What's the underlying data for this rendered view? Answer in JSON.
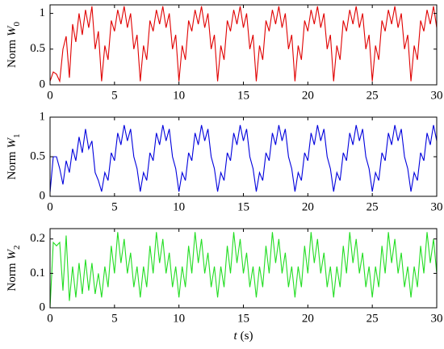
{
  "chart_data": [
    {
      "type": "line",
      "ylabel": "Norm",
      "ylabel_symbol": "W",
      "ylabel_sub": "0",
      "x": [
        0,
        0.25,
        0.5,
        0.75,
        1,
        1.25,
        1.5,
        1.75,
        2,
        2.25,
        2.5,
        2.75,
        3,
        3.25,
        3.5,
        3.75,
        4,
        4.25,
        4.5,
        4.75,
        5,
        5.25,
        5.5,
        5.75,
        6,
        6.25,
        6.5,
        6.75,
        7,
        7.25,
        7.5,
        7.75,
        8,
        8.25,
        8.5,
        8.75,
        9,
        9.25,
        9.5,
        9.75,
        10,
        10.25,
        10.5,
        10.75,
        11,
        11.25,
        11.5,
        11.75,
        12,
        12.25,
        12.5,
        12.75,
        13,
        13.25,
        13.5,
        13.75,
        14,
        14.25,
        14.5,
        14.75,
        15,
        15.25,
        15.5,
        15.75,
        16,
        16.25,
        16.5,
        16.75,
        17,
        17.25,
        17.5,
        17.75,
        18,
        18.25,
        18.5,
        18.75,
        19,
        19.25,
        19.5,
        19.75,
        20,
        20.25,
        20.5,
        20.75,
        21,
        21.25,
        21.5,
        21.75,
        22,
        22.25,
        22.5,
        22.75,
        23,
        23.25,
        23.5,
        23.75,
        24,
        24.25,
        24.5,
        24.75,
        25,
        25.25,
        25.5,
        25.75,
        26,
        26.25,
        26.5,
        26.75,
        27,
        27.25,
        27.5,
        27.75,
        28,
        28.25,
        28.5,
        28.75,
        29,
        29.25,
        29.5,
        29.75,
        30
      ],
      "series": [
        {
          "color": "#e00000",
          "values": [
            0.05,
            0.18,
            0.15,
            0.05,
            0.5,
            0.68,
            0.1,
            0.85,
            0.6,
            1.0,
            0.7,
            1.05,
            0.8,
            1.1,
            0.5,
            0.75,
            0.05,
            0.55,
            0.35,
            0.9,
            0.75,
            1.05,
            0.85,
            1.1,
            0.8,
            1.0,
            0.5,
            0.7,
            0.05,
            0.55,
            0.35,
            0.9,
            0.75,
            1.05,
            0.85,
            1.1,
            0.8,
            1.0,
            0.5,
            0.7,
            0.05,
            0.55,
            0.35,
            0.9,
            0.75,
            1.05,
            0.85,
            1.1,
            0.8,
            1.0,
            0.5,
            0.7,
            0.05,
            0.55,
            0.35,
            0.9,
            0.75,
            1.05,
            0.85,
            1.1,
            0.8,
            1.0,
            0.5,
            0.7,
            0.05,
            0.55,
            0.35,
            0.9,
            0.75,
            1.05,
            0.85,
            1.1,
            0.8,
            1.0,
            0.5,
            0.7,
            0.05,
            0.55,
            0.35,
            0.9,
            0.75,
            1.05,
            0.85,
            1.1,
            0.8,
            1.0,
            0.5,
            0.7,
            0.05,
            0.55,
            0.35,
            0.9,
            0.75,
            1.05,
            0.85,
            1.1,
            0.8,
            1.0,
            0.5,
            0.7,
            0.05,
            0.55,
            0.35,
            0.9,
            0.75,
            1.05,
            0.85,
            1.1,
            0.8,
            1.0,
            0.5,
            0.7,
            0.05,
            0.55,
            0.35,
            0.9,
            0.75,
            1.05,
            0.85,
            1.1,
            0.8
          ]
        }
      ],
      "xlim": [
        0,
        30
      ],
      "xticks": [
        0,
        5,
        10,
        15,
        20,
        25,
        30
      ],
      "ylim": [
        0,
        1.12
      ],
      "yticks": [
        0,
        0.5,
        1
      ]
    },
    {
      "type": "line",
      "ylabel": "Norm",
      "ylabel_symbol": "W",
      "ylabel_sub": "1",
      "x": [
        0,
        0.25,
        0.5,
        0.75,
        1,
        1.25,
        1.5,
        1.75,
        2,
        2.25,
        2.5,
        2.75,
        3,
        3.25,
        3.5,
        3.75,
        4,
        4.25,
        4.5,
        4.75,
        5,
        5.25,
        5.5,
        5.75,
        6,
        6.25,
        6.5,
        6.75,
        7,
        7.25,
        7.5,
        7.75,
        8,
        8.25,
        8.5,
        8.75,
        9,
        9.25,
        9.5,
        9.75,
        10,
        10.25,
        10.5,
        10.75,
        11,
        11.25,
        11.5,
        11.75,
        12,
        12.25,
        12.5,
        12.75,
        13,
        13.25,
        13.5,
        13.75,
        14,
        14.25,
        14.5,
        14.75,
        15,
        15.25,
        15.5,
        15.75,
        16,
        16.25,
        16.5,
        16.75,
        17,
        17.25,
        17.5,
        17.75,
        18,
        18.25,
        18.5,
        18.75,
        19,
        19.25,
        19.5,
        19.75,
        20,
        20.25,
        20.5,
        20.75,
        21,
        21.25,
        21.5,
        21.75,
        22,
        22.25,
        22.5,
        22.75,
        23,
        23.25,
        23.5,
        23.75,
        24,
        24.25,
        24.5,
        24.75,
        25,
        25.25,
        25.5,
        25.75,
        26,
        26.25,
        26.5,
        26.75,
        27,
        27.25,
        27.5,
        27.75,
        28,
        28.25,
        28.5,
        28.75,
        29,
        29.25,
        29.5,
        29.75,
        30
      ],
      "series": [
        {
          "color": "#0000dd",
          "values": [
            0.05,
            0.5,
            0.5,
            0.35,
            0.15,
            0.45,
            0.3,
            0.6,
            0.45,
            0.75,
            0.55,
            0.85,
            0.6,
            0.7,
            0.3,
            0.2,
            0.06,
            0.3,
            0.2,
            0.55,
            0.45,
            0.8,
            0.65,
            0.9,
            0.7,
            0.85,
            0.5,
            0.35,
            0.06,
            0.3,
            0.2,
            0.55,
            0.45,
            0.8,
            0.65,
            0.9,
            0.7,
            0.85,
            0.5,
            0.35,
            0.06,
            0.3,
            0.2,
            0.55,
            0.45,
            0.8,
            0.65,
            0.9,
            0.7,
            0.85,
            0.5,
            0.35,
            0.06,
            0.3,
            0.2,
            0.55,
            0.45,
            0.8,
            0.65,
            0.9,
            0.7,
            0.85,
            0.5,
            0.35,
            0.06,
            0.3,
            0.2,
            0.55,
            0.45,
            0.8,
            0.65,
            0.9,
            0.7,
            0.85,
            0.5,
            0.35,
            0.06,
            0.3,
            0.2,
            0.55,
            0.45,
            0.8,
            0.65,
            0.9,
            0.7,
            0.85,
            0.5,
            0.35,
            0.06,
            0.3,
            0.2,
            0.55,
            0.45,
            0.8,
            0.65,
            0.9,
            0.7,
            0.85,
            0.5,
            0.35,
            0.06,
            0.3,
            0.2,
            0.55,
            0.45,
            0.8,
            0.65,
            0.9,
            0.7,
            0.85,
            0.5,
            0.35,
            0.06,
            0.3,
            0.2,
            0.55,
            0.45,
            0.8,
            0.65,
            0.9,
            0.7
          ]
        }
      ],
      "xlim": [
        0,
        30
      ],
      "xticks": [
        0,
        5,
        10,
        15,
        20,
        25,
        30
      ],
      "ylim": [
        0,
        1
      ],
      "yticks": [
        0,
        0.5,
        1
      ]
    },
    {
      "type": "line",
      "ylabel": "Norm",
      "ylabel_symbol": "W",
      "ylabel_sub": "2",
      "xlabel_symbol": "t",
      "xlabel_unit": "(s)",
      "x": [
        0,
        0.25,
        0.5,
        0.75,
        1,
        1.25,
        1.5,
        1.75,
        2,
        2.25,
        2.5,
        2.75,
        3,
        3.25,
        3.5,
        3.75,
        4,
        4.25,
        4.5,
        4.75,
        5,
        5.25,
        5.5,
        5.75,
        6,
        6.25,
        6.5,
        6.75,
        7,
        7.25,
        7.5,
        7.75,
        8,
        8.25,
        8.5,
        8.75,
        9,
        9.25,
        9.5,
        9.75,
        10,
        10.25,
        10.5,
        10.75,
        11,
        11.25,
        11.5,
        11.75,
        12,
        12.25,
        12.5,
        12.75,
        13,
        13.25,
        13.5,
        13.75,
        14,
        14.25,
        14.5,
        14.75,
        15,
        15.25,
        15.5,
        15.75,
        16,
        16.25,
        16.5,
        16.75,
        17,
        17.25,
        17.5,
        17.75,
        18,
        18.25,
        18.5,
        18.75,
        19,
        19.25,
        19.5,
        19.75,
        20,
        20.25,
        20.5,
        20.75,
        21,
        21.25,
        21.5,
        21.75,
        22,
        22.25,
        22.5,
        22.75,
        23,
        23.25,
        23.5,
        23.75,
        24,
        24.25,
        24.5,
        24.75,
        25,
        25.25,
        25.5,
        25.75,
        26,
        26.25,
        26.5,
        26.75,
        27,
        27.25,
        27.5,
        27.75,
        28,
        28.25,
        28.5,
        28.75,
        29,
        29.25,
        29.5,
        29.75,
        30
      ],
      "series": [
        {
          "color": "#22dd22",
          "values": [
            0.0,
            0.19,
            0.18,
            0.19,
            0.05,
            0.21,
            0.02,
            0.12,
            0.03,
            0.13,
            0.04,
            0.14,
            0.05,
            0.13,
            0.04,
            0.1,
            0.03,
            0.12,
            0.06,
            0.18,
            0.1,
            0.22,
            0.13,
            0.2,
            0.1,
            0.16,
            0.06,
            0.12,
            0.03,
            0.12,
            0.06,
            0.18,
            0.1,
            0.22,
            0.13,
            0.2,
            0.1,
            0.16,
            0.06,
            0.12,
            0.03,
            0.12,
            0.06,
            0.18,
            0.1,
            0.22,
            0.13,
            0.2,
            0.1,
            0.16,
            0.06,
            0.12,
            0.03,
            0.12,
            0.06,
            0.18,
            0.1,
            0.22,
            0.13,
            0.2,
            0.1,
            0.16,
            0.06,
            0.12,
            0.03,
            0.12,
            0.06,
            0.18,
            0.1,
            0.22,
            0.13,
            0.2,
            0.1,
            0.16,
            0.06,
            0.12,
            0.03,
            0.12,
            0.06,
            0.18,
            0.1,
            0.22,
            0.13,
            0.2,
            0.1,
            0.16,
            0.06,
            0.12,
            0.03,
            0.12,
            0.06,
            0.18,
            0.1,
            0.22,
            0.13,
            0.2,
            0.1,
            0.16,
            0.06,
            0.12,
            0.03,
            0.12,
            0.06,
            0.18,
            0.1,
            0.22,
            0.13,
            0.2,
            0.1,
            0.16,
            0.06,
            0.12,
            0.03,
            0.12,
            0.06,
            0.18,
            0.1,
            0.22,
            0.13,
            0.2,
            0.1
          ]
        }
      ],
      "xlim": [
        0,
        30
      ],
      "xticks": [
        0,
        5,
        10,
        15,
        20,
        25,
        30
      ],
      "ylim": [
        0,
        0.23
      ],
      "yticks": [
        0,
        0.1,
        0.2
      ]
    }
  ]
}
